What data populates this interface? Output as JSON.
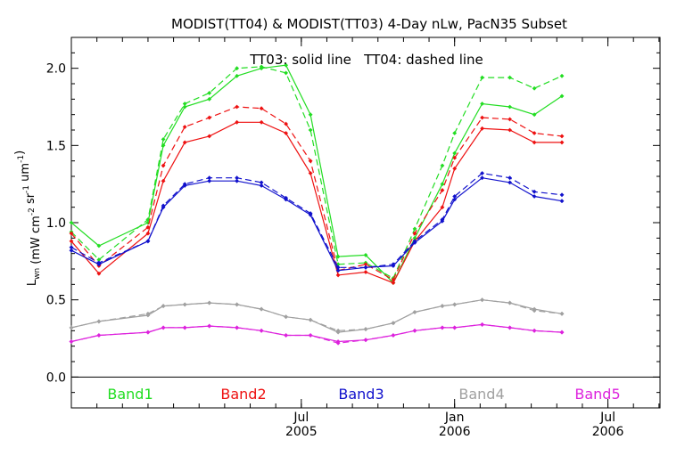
{
  "chart_data": {
    "type": "line",
    "title": "MODIST(TT04) & MODIST(TT03) 4-Day nLw, PacN35 Subset",
    "ylabel": "L_wn (mW cm^-2 sr^-1 um^-1)",
    "annotation": "TT03: solid line   TT04: dashed line",
    "ylim": [
      -0.2,
      2.2
    ],
    "xlim": [
      2004.75,
      2006.67
    ],
    "grid": false,
    "y_ticks": [
      "0.0",
      "0.5",
      "1.0",
      "1.5",
      "2.0"
    ],
    "x_tick_labels": [
      {
        "month": "Jul",
        "year": "2005",
        "value": 2005.5
      },
      {
        "month": "Jan",
        "year": "2006",
        "value": 2006.0
      },
      {
        "month": "Jul",
        "year": "2006",
        "value": 2006.5
      }
    ],
    "x": [
      2004.75,
      2004.84,
      2005.0,
      2005.05,
      2005.12,
      2005.2,
      2005.29,
      2005.37,
      2005.45,
      2005.53,
      2005.62,
      2005.71,
      2005.8,
      2005.87,
      2005.96,
      2006.0,
      2006.09,
      2006.18,
      2006.26,
      2006.35,
      2006.43,
      2006.52,
      2006.6,
      2006.67
    ],
    "series": [
      {
        "name": "Band1",
        "color": "#22dd22",
        "solid": [
          1.0,
          0.85,
          1.0,
          1.5,
          1.75,
          1.8,
          1.95,
          2.0,
          2.02,
          1.7,
          0.78,
          0.79,
          0.61,
          0.9,
          1.25,
          1.45,
          1.77,
          1.75,
          1.7,
          1.82,
          null,
          null,
          null,
          null
        ],
        "dashed": [
          0.94,
          0.76,
          1.02,
          1.54,
          1.77,
          1.84,
          2.0,
          2.01,
          1.97,
          1.6,
          0.73,
          0.74,
          0.64,
          0.96,
          1.37,
          1.58,
          1.94,
          1.94,
          1.87,
          1.95,
          null,
          null,
          null,
          null
        ]
      },
      {
        "name": "Band2",
        "color": "#ee1111",
        "solid": [
          0.88,
          0.67,
          0.93,
          1.27,
          1.52,
          1.56,
          1.65,
          1.65,
          1.58,
          1.32,
          0.66,
          0.68,
          0.61,
          0.88,
          1.1,
          1.35,
          1.61,
          1.6,
          1.52,
          1.52,
          null,
          null,
          null,
          null
        ],
        "dashed": [
          0.93,
          0.72,
          0.97,
          1.37,
          1.62,
          1.68,
          1.75,
          1.74,
          1.64,
          1.4,
          0.69,
          0.73,
          0.63,
          0.93,
          1.21,
          1.42,
          1.68,
          1.67,
          1.58,
          1.56,
          null,
          null,
          null,
          null
        ]
      },
      {
        "name": "Band3",
        "color": "#1111cc",
        "solid": [
          0.82,
          0.73,
          0.88,
          1.1,
          1.24,
          1.27,
          1.27,
          1.24,
          1.15,
          1.05,
          0.69,
          0.71,
          0.72,
          0.87,
          1.01,
          1.15,
          1.29,
          1.26,
          1.17,
          1.14,
          null,
          null,
          null,
          null
        ],
        "dashed": [
          0.84,
          0.74,
          0.88,
          1.11,
          1.25,
          1.29,
          1.29,
          1.26,
          1.16,
          1.06,
          0.71,
          0.71,
          0.73,
          0.88,
          1.02,
          1.17,
          1.32,
          1.29,
          1.2,
          1.18,
          null,
          null,
          null,
          null
        ]
      },
      {
        "name": "Band4",
        "color": "#a0a0a0",
        "solid": [
          0.32,
          0.36,
          0.4,
          0.46,
          0.47,
          0.48,
          0.47,
          0.44,
          0.39,
          0.37,
          0.29,
          0.31,
          0.35,
          0.42,
          0.46,
          0.47,
          0.5,
          0.48,
          0.44,
          0.41,
          null,
          null,
          null,
          null
        ],
        "dashed": [
          0.32,
          0.36,
          0.41,
          0.46,
          0.47,
          0.48,
          0.47,
          0.44,
          0.39,
          0.37,
          0.3,
          0.31,
          0.35,
          0.42,
          0.46,
          0.47,
          0.5,
          0.48,
          0.43,
          0.41,
          null,
          null,
          null,
          null
        ]
      },
      {
        "name": "Band5",
        "color": "#dd22dd",
        "solid": [
          0.23,
          0.27,
          0.29,
          0.32,
          0.32,
          0.33,
          0.32,
          0.3,
          0.27,
          0.27,
          0.23,
          0.24,
          0.27,
          0.3,
          0.32,
          0.32,
          0.34,
          0.32,
          0.3,
          0.29,
          null,
          null,
          null,
          null
        ],
        "dashed": [
          0.23,
          0.27,
          0.29,
          0.32,
          0.32,
          0.33,
          0.32,
          0.3,
          0.27,
          0.27,
          0.22,
          0.24,
          0.27,
          0.3,
          0.32,
          0.32,
          0.34,
          0.32,
          0.3,
          0.29,
          null,
          null,
          null,
          null
        ]
      }
    ]
  }
}
